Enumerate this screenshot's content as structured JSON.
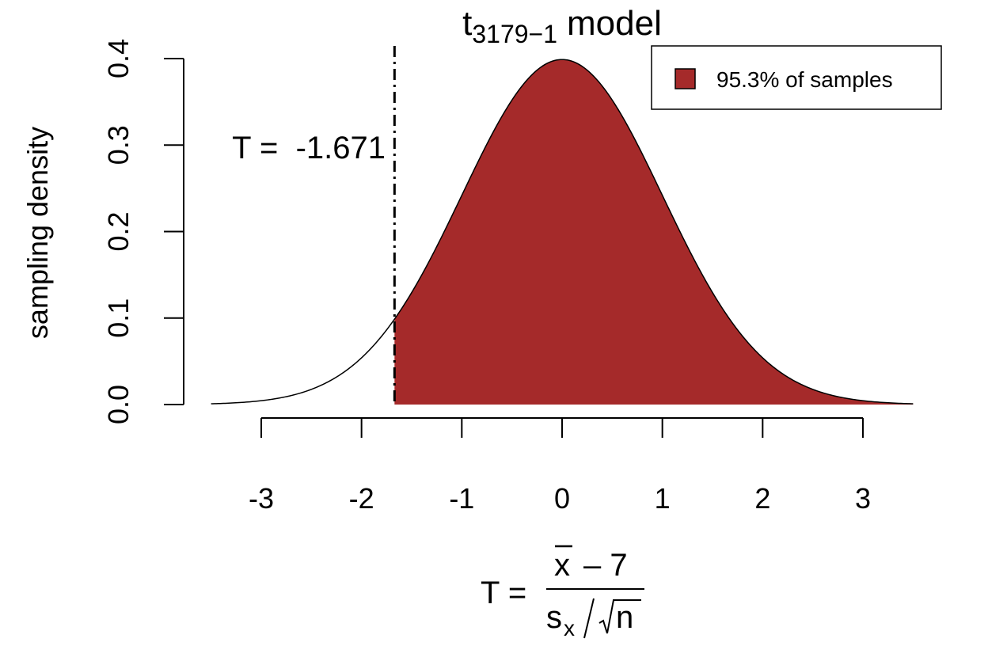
{
  "chart_data": {
    "type": "area",
    "title": {
      "main": "t",
      "subscript": "3179−1",
      "suffix": "model"
    },
    "distribution": "t",
    "degrees_of_freedom": 3178,
    "x_range": [
      -3.5,
      3.5
    ],
    "xlim_ticks": [
      -3,
      -2,
      -1,
      0,
      1,
      2,
      3
    ],
    "x_tick_labels": [
      "-3",
      "-2",
      "-1",
      "0",
      "1",
      "2",
      "3"
    ],
    "ylim": [
      0,
      0.4
    ],
    "y_ticks": [
      0.0,
      0.1,
      0.2,
      0.3,
      0.4
    ],
    "y_tick_labels": [
      "0.0",
      "0.1",
      "0.2",
      "0.3",
      "0.4"
    ],
    "ylabel": "sampling density",
    "xlabel": {
      "lhs": "T =",
      "numerator_bar": "x",
      "numerator_rest": "– 7",
      "denominator_s": "s",
      "denominator_sub": "x",
      "denominator_rest": "n"
    },
    "t_statistic": -1.671,
    "annotation": "T =  -1.671",
    "shaded_region": [
      -1.671,
      3.5
    ],
    "fill_color": "#A52A2A",
    "legend": {
      "label": "95.3% of samples",
      "placement": "top-right"
    },
    "grid": false
  }
}
